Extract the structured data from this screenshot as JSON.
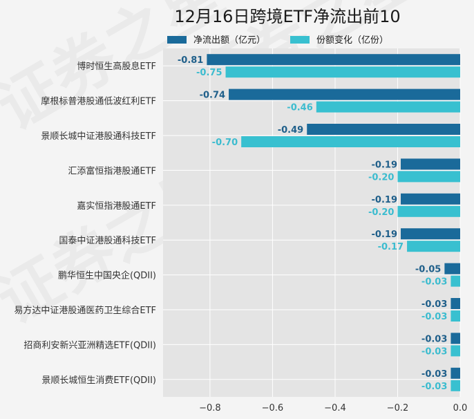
{
  "colors": {
    "net_flow": "#1a6a9a",
    "share_change": "#38c0d0",
    "plot_bg": "#e4e4e4",
    "page_bg": "#f4f4f4",
    "grid": "#ffffff"
  },
  "chart_data": {
    "type": "bar",
    "orientation": "horizontal",
    "title": "12月16日跨境ETF净流出前10",
    "categories": [
      "博时恒生高股息ETF",
      "摩根标普港股通低波红利ETF",
      "景顺长城中证港股通科技ETF",
      "汇添富恒指港股通ETF",
      "嘉实恒指港股通ETF",
      "国泰中证港股通科技ETF",
      "鹏华恒生中国央企(QDII)",
      "易方达中证港股通医药卫生综合ETF",
      "招商利安新兴亚洲精选ETF(QDII)",
      "景顺长城恒生消费ETF(QDII)"
    ],
    "series": [
      {
        "name": "净流出额（亿元）",
        "values": [
          -0.81,
          -0.74,
          -0.49,
          -0.19,
          -0.19,
          -0.19,
          -0.05,
          -0.03,
          -0.03,
          -0.03
        ],
        "labels": [
          "-0.81",
          "-0.74",
          "-0.49",
          "-0.19",
          "-0.19",
          "-0.19",
          "-0.05",
          "-0.03",
          "-0.03",
          "-0.03"
        ]
      },
      {
        "name": "份额变化（亿份）",
        "values": [
          -0.75,
          -0.46,
          -0.7,
          -0.2,
          -0.2,
          -0.17,
          -0.03,
          -0.03,
          -0.03,
          -0.03
        ],
        "labels": [
          "-0.75",
          "-0.46",
          "-0.70",
          "-0.20",
          "-0.20",
          "-0.17",
          "-0.03",
          "-0.03",
          "-0.03",
          "-0.03"
        ]
      }
    ],
    "xlim": [
      -0.95,
      0.0
    ],
    "xticks": [
      -0.8,
      -0.6,
      -0.4,
      -0.2,
      0.0
    ],
    "xtick_labels": [
      "−0.8",
      "−0.6",
      "−0.4",
      "−0.2",
      "0.0"
    ],
    "grid": true,
    "legend_position": "top"
  }
}
